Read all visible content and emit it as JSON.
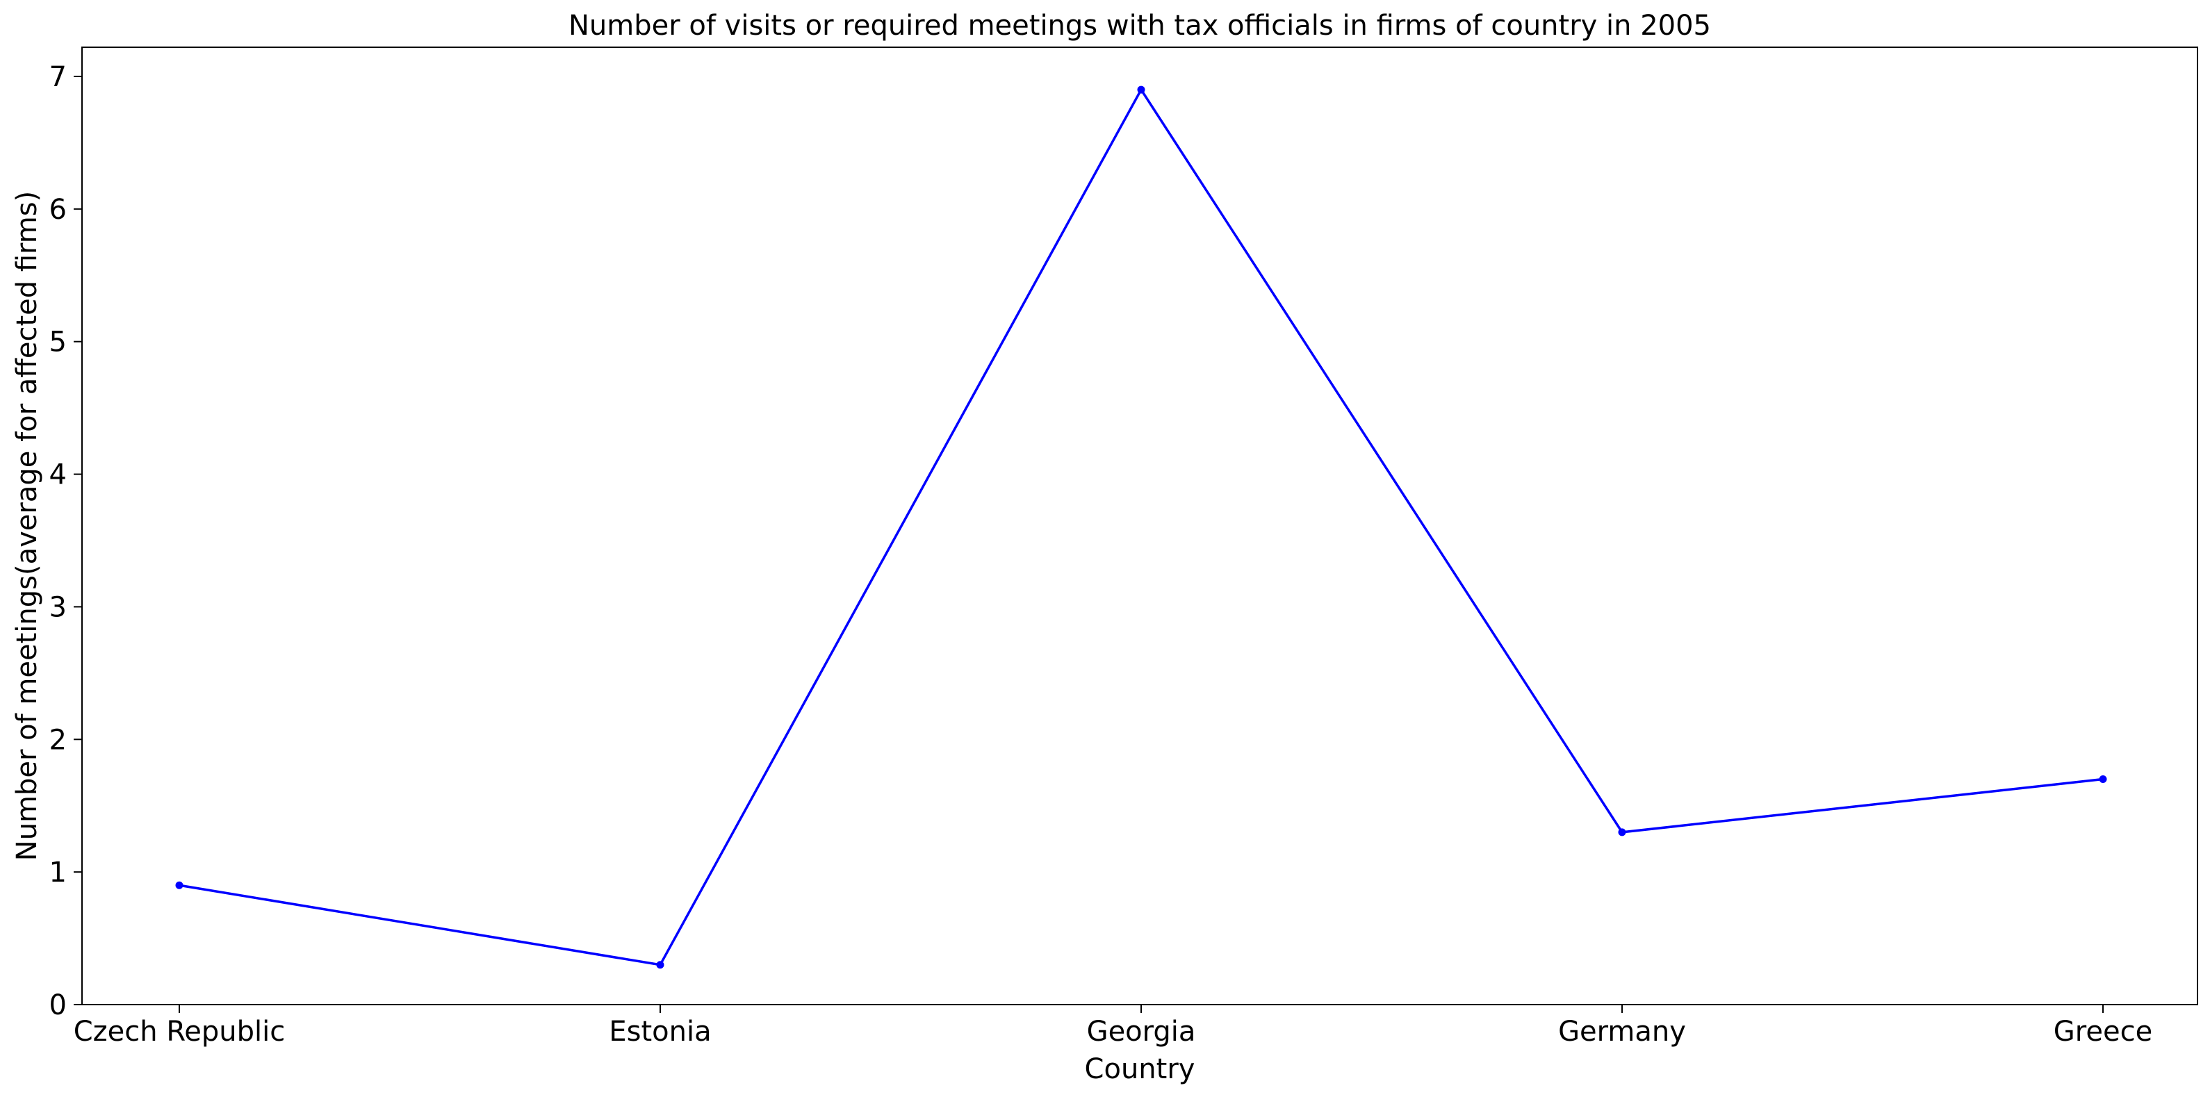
{
  "chart_data": {
    "type": "line",
    "title": "Number of visits or required meetings with tax officials in firms of country in 2005",
    "xlabel": "Country",
    "ylabel": "Number of meetings(average for affected firms)",
    "categories": [
      "Czech Republic",
      "Estonia",
      "Georgia",
      "Germany",
      "Greece"
    ],
    "series": [
      {
        "values": [
          0.9,
          0.3,
          6.9,
          1.3,
          1.7
        ],
        "color": "#0000ff"
      }
    ],
    "ylim": [
      0,
      7.22
    ],
    "yticks": [
      0,
      1,
      2,
      3,
      4,
      5,
      6,
      7
    ],
    "grid": false,
    "legend": "none"
  }
}
